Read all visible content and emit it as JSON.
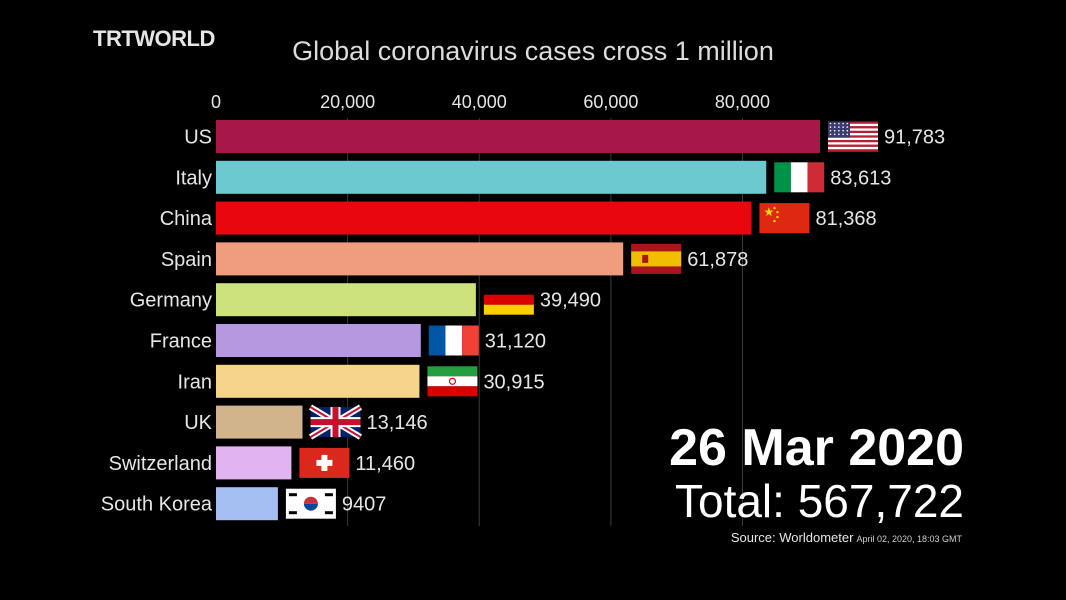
{
  "branding": {
    "logo_text": "TRTWORLD"
  },
  "chart_data": {
    "type": "bar",
    "orientation": "horizontal",
    "title": "Global coronavirus cases cross 1 million",
    "xlim": [
      0,
      91783
    ],
    "x_ticks": [
      0,
      20000,
      40000,
      60000,
      80000
    ],
    "x_tick_labels": [
      "0",
      "20,000",
      "40,000",
      "60,000",
      "80,000"
    ],
    "axis_position": "top",
    "grid": true,
    "categories": [
      "US",
      "Italy",
      "China",
      "Spain",
      "Germany",
      "France",
      "Iran",
      "UK",
      "Switzerland",
      "South Korea"
    ],
    "values": [
      91783,
      83613,
      81368,
      61878,
      39490,
      31120,
      30915,
      13146,
      11460,
      9407
    ],
    "value_labels": [
      "91,783",
      "83,613",
      "81,368",
      "61,878",
      "39,490",
      "31,120",
      "30,915",
      "13,146",
      "11,460",
      "9407"
    ],
    "bar_colors": [
      "#a8174a",
      "#6cc9cf",
      "#e8070e",
      "#ef9d7e",
      "#cde27d",
      "#b598e0",
      "#f3d489",
      "#d2b48c",
      "#e0b4ee",
      "#a6bff2"
    ],
    "flag_icons": [
      "us-flag-icon",
      "italy-flag-icon",
      "china-flag-icon",
      "spain-flag-icon",
      "germany-flag-icon",
      "france-flag-icon",
      "iran-flag-icon",
      "uk-flag-icon",
      "switzerland-flag-icon",
      "south-korea-flag-icon"
    ]
  },
  "summary": {
    "date": "26 Mar 2020",
    "total": "Total: 567,722",
    "source": "Source: Worldometer",
    "source_timestamp": "April 02, 2020, 18:03 GMT"
  }
}
